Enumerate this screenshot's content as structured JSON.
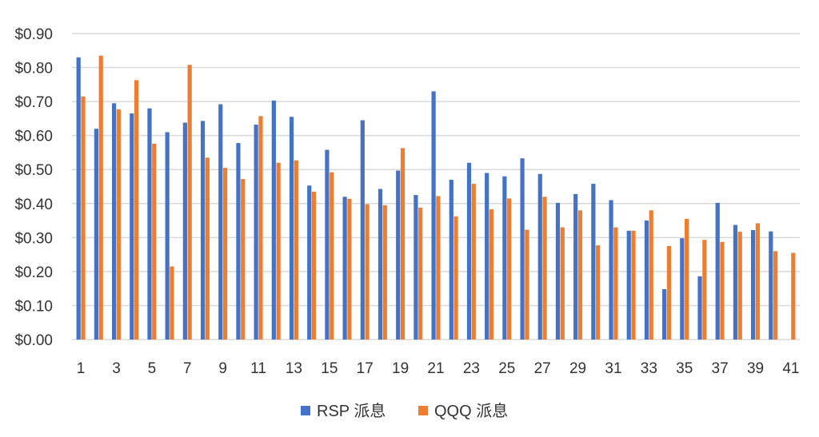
{
  "chart_data": {
    "type": "bar",
    "categories": [
      "1",
      "2",
      "3",
      "4",
      "5",
      "6",
      "7",
      "8",
      "9",
      "10",
      "11",
      "12",
      "13",
      "14",
      "15",
      "16",
      "17",
      "18",
      "19",
      "20",
      "21",
      "22",
      "23",
      "24",
      "25",
      "26",
      "27",
      "28",
      "29",
      "30",
      "31",
      "32",
      "33",
      "34",
      "35",
      "36",
      "37",
      "38",
      "39",
      "40",
      "41"
    ],
    "x_tick_labels": [
      "1",
      "3",
      "5",
      "7",
      "9",
      "11",
      "13",
      "15",
      "17",
      "19",
      "21",
      "23",
      "25",
      "27",
      "29",
      "31",
      "33",
      "35",
      "37",
      "39",
      "41"
    ],
    "y_tick_labels": [
      "$0.00",
      "$0.10",
      "$0.20",
      "$0.30",
      "$0.40",
      "$0.50",
      "$0.60",
      "$0.70",
      "$0.80",
      "$0.90"
    ],
    "ylim": [
      0,
      0.9
    ],
    "y_tick_step": 0.1,
    "grid": true,
    "legend_position": "bottom",
    "series": [
      {
        "name": "RSP 派息",
        "color": "#4472c4",
        "values": [
          0.83,
          0.62,
          0.695,
          0.665,
          0.68,
          0.61,
          0.638,
          0.643,
          0.692,
          0.578,
          0.632,
          0.703,
          0.655,
          0.453,
          0.558,
          0.42,
          0.645,
          0.443,
          0.497,
          0.425,
          0.73,
          0.47,
          0.52,
          0.49,
          0.48,
          0.533,
          0.487,
          0.402,
          0.428,
          0.458,
          0.41,
          0.32,
          0.35,
          0.148,
          0.298,
          0.186,
          0.402,
          0.337,
          0.322,
          0.318,
          null
        ]
      },
      {
        "name": "QQQ 派息",
        "color": "#ed7d31",
        "values": [
          0.715,
          0.835,
          0.677,
          0.763,
          0.576,
          0.215,
          0.808,
          0.535,
          0.505,
          0.472,
          0.657,
          0.52,
          0.527,
          0.435,
          0.492,
          0.414,
          0.398,
          0.395,
          0.563,
          0.388,
          0.422,
          0.362,
          0.458,
          0.383,
          0.415,
          0.323,
          0.42,
          0.33,
          0.38,
          0.277,
          0.33,
          0.32,
          0.38,
          0.275,
          0.355,
          0.293,
          0.287,
          0.317,
          0.342,
          0.26,
          0.255
        ]
      }
    ]
  }
}
